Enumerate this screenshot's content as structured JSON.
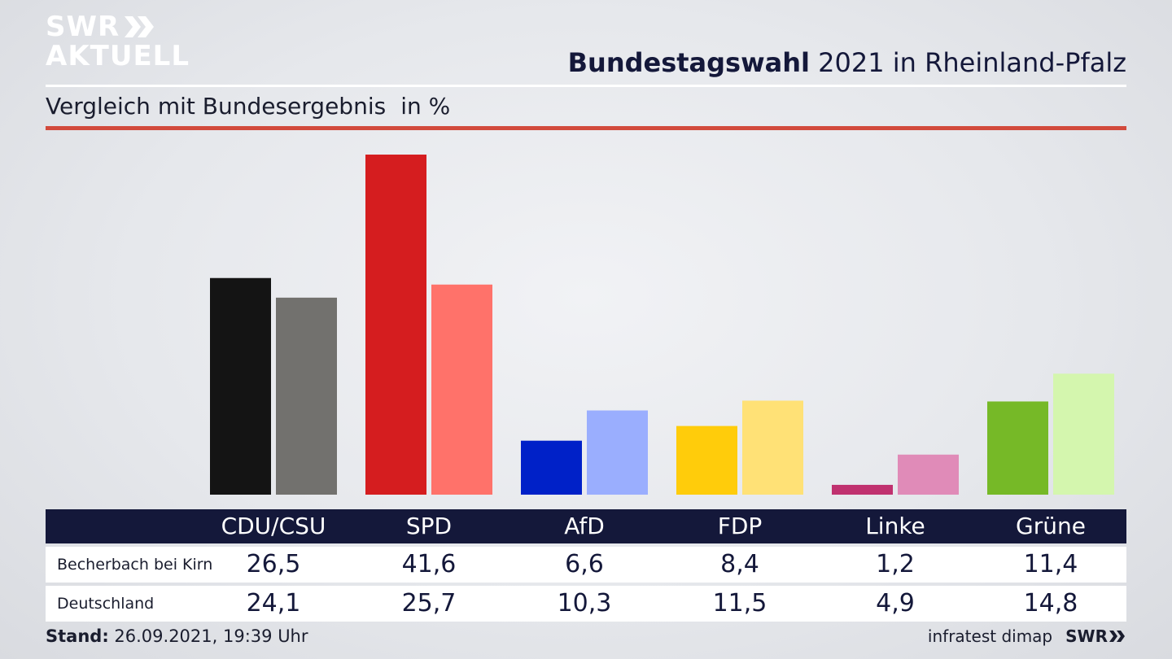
{
  "header": {
    "logo_line1": "SWR",
    "logo_line2": "AKTUELL",
    "title_bold": "Bundestagswahl",
    "title_rest": "2021 in Rheinland-Pfalz",
    "subtitle": "Vergleich mit Bundesergebnis",
    "unit": "in %"
  },
  "colors": {
    "header_bar": "#14183a",
    "accent_rule": "#d24a3c"
  },
  "chart_data": {
    "type": "bar",
    "categories": [
      "CDU/CSU",
      "SPD",
      "AfD",
      "FDP",
      "Linke",
      "Grüne"
    ],
    "series": [
      {
        "name": "Becherbach bei Kirn",
        "values": [
          26.5,
          41.6,
          6.6,
          8.4,
          1.2,
          11.4
        ],
        "colors": [
          "#141414",
          "#d51d1f",
          "#0021c8",
          "#ffcc0b",
          "#c0316f",
          "#76b927"
        ]
      },
      {
        "name": "Deutschland",
        "values": [
          24.1,
          25.7,
          10.3,
          11.5,
          4.9,
          14.8
        ],
        "colors": [
          "#72716e",
          "#ff726a",
          "#9aaefe",
          "#ffe176",
          "#e08bb8",
          "#d4f6ae"
        ]
      }
    ],
    "value_labels": [
      [
        "26,5",
        "41,6",
        "6,6",
        "8,4",
        "1,2",
        "11,4"
      ],
      [
        "24,1",
        "25,7",
        "10,3",
        "11,5",
        "4,9",
        "14,8"
      ]
    ],
    "ylim": [
      0,
      42
    ],
    "grid": false,
    "legend": "table below chart"
  },
  "footer": {
    "stand_label": "Stand:",
    "stand_value": "26.09.2021, 19:39 Uhr",
    "source": "infratest dimap",
    "brand": "SWR"
  }
}
